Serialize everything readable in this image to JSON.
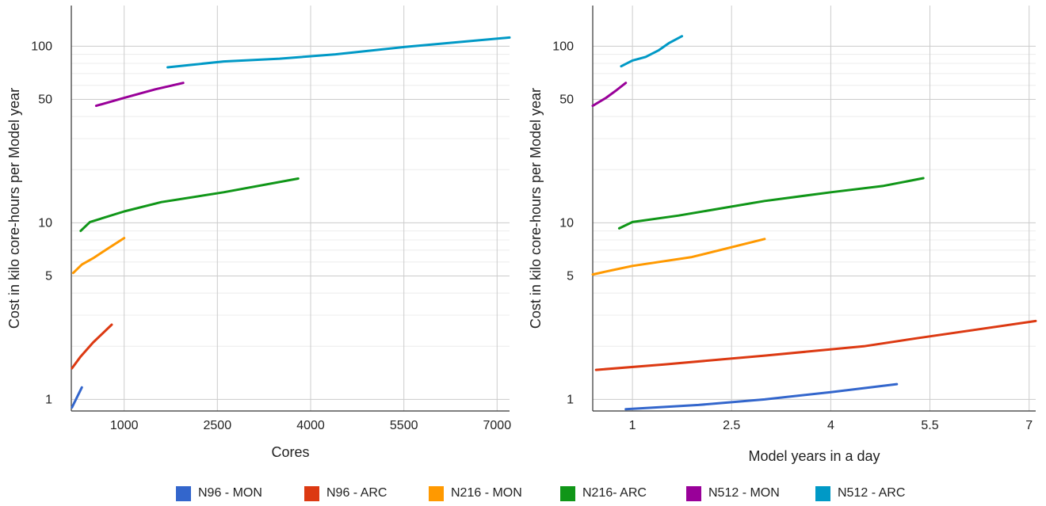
{
  "chart_data": [
    {
      "type": "line",
      "title": "",
      "xlabel": "Cores",
      "ylabel": "Cost in kilo core-hours  per Model year",
      "yscale": "log",
      "xlim": [
        150,
        7200
      ],
      "ylim": [
        0.86,
        170
      ],
      "xticks": [
        1000,
        2500,
        4000,
        5500,
        7000
      ],
      "xtick_labels": [
        "1000",
        "2500",
        "4000",
        "5500",
        "7000"
      ],
      "yticks": [
        1,
        5,
        10,
        50,
        100
      ],
      "ytick_labels": [
        "1",
        "5",
        "10",
        "50",
        "100"
      ],
      "grid": true,
      "series": [
        {
          "name": "N96 - MON",
          "color": "#3366cc",
          "points": [
            [
              160,
              0.9
            ],
            [
              320,
              1.17
            ]
          ]
        },
        {
          "name": "N96 - ARC",
          "color": "#dc3912",
          "points": [
            [
              160,
              1.5
            ],
            [
              300,
              1.75
            ],
            [
              500,
              2.1
            ],
            [
              800,
              2.65
            ]
          ]
        },
        {
          "name": "N216 - MON",
          "color": "#ff9900",
          "points": [
            [
              180,
              5.2
            ],
            [
              320,
              5.8
            ],
            [
              500,
              6.3
            ],
            [
              750,
              7.2
            ],
            [
              1000,
              8.2
            ]
          ]
        },
        {
          "name": "N216- ARC",
          "color": "#109618",
          "points": [
            [
              300,
              9.0
            ],
            [
              450,
              10.1
            ],
            [
              1000,
              11.6
            ],
            [
              1600,
              13.1
            ],
            [
              2600,
              14.9
            ],
            [
              3800,
              17.8
            ]
          ]
        },
        {
          "name": "N512 - MON",
          "color": "#990099",
          "points": [
            [
              550,
              46
            ],
            [
              1000,
              51
            ],
            [
              1500,
              57
            ],
            [
              1950,
              62
            ]
          ]
        },
        {
          "name": "N512 - ARC",
          "color": "#0099c6",
          "points": [
            [
              1700,
              76
            ],
            [
              2600,
              82
            ],
            [
              3500,
              85
            ],
            [
              4400,
              90
            ],
            [
              5500,
              99
            ],
            [
              7200,
              112
            ]
          ]
        }
      ]
    },
    {
      "type": "line",
      "title": "",
      "xlabel": "Model years in a day",
      "ylabel": "Cost in kilo core-hours  per Model year",
      "yscale": "log",
      "xlim": [
        0.4,
        7.1
      ],
      "ylim": [
        0.86,
        170
      ],
      "xticks": [
        1,
        2.5,
        4,
        5.5,
        7
      ],
      "xtick_labels": [
        "1",
        "2.5",
        "4",
        "5.5",
        "7"
      ],
      "yticks": [
        1,
        5,
        10,
        50,
        100
      ],
      "ytick_labels": [
        "1",
        "5",
        "10",
        "50",
        "100"
      ],
      "grid": true,
      "series": [
        {
          "name": "N96 - MON",
          "color": "#3366cc",
          "points": [
            [
              0.9,
              0.88
            ],
            [
              2.0,
              0.93
            ],
            [
              3.0,
              1.0
            ],
            [
              4.0,
              1.1
            ],
            [
              5.0,
              1.22
            ]
          ]
        },
        {
          "name": "N96 - ARC",
          "color": "#dc3912",
          "points": [
            [
              0.45,
              1.47
            ],
            [
              1.5,
              1.58
            ],
            [
              3.0,
              1.77
            ],
            [
              4.5,
              2.0
            ],
            [
              5.3,
              2.22
            ],
            [
              7.1,
              2.78
            ]
          ]
        },
        {
          "name": "N216 - MON",
          "color": "#ff9900",
          "points": [
            [
              0.4,
              5.1
            ],
            [
              0.7,
              5.4
            ],
            [
              1.0,
              5.7
            ],
            [
              1.9,
              6.4
            ],
            [
              3.0,
              8.1
            ]
          ]
        },
        {
          "name": "N216- ARC",
          "color": "#109618",
          "points": [
            [
              0.8,
              9.3
            ],
            [
              1.0,
              10.1
            ],
            [
              1.7,
              11.0
            ],
            [
              3.0,
              13.3
            ],
            [
              4.0,
              14.9
            ],
            [
              4.8,
              16.2
            ],
            [
              5.4,
              17.9
            ]
          ]
        },
        {
          "name": "N512 - MON",
          "color": "#990099",
          "points": [
            [
              0.4,
              46
            ],
            [
              0.6,
              51
            ],
            [
              0.75,
              56
            ],
            [
              0.9,
              62
            ]
          ]
        },
        {
          "name": "N512 - ARC",
          "color": "#0099c6",
          "points": [
            [
              0.83,
              77
            ],
            [
              1.0,
              83
            ],
            [
              1.2,
              87
            ],
            [
              1.4,
              95
            ],
            [
              1.55,
              104
            ],
            [
              1.75,
              114
            ]
          ]
        }
      ]
    }
  ],
  "legend": {
    "items": [
      {
        "label": "N96 - MON",
        "color": "#3366cc"
      },
      {
        "label": "N96 - ARC",
        "color": "#dc3912"
      },
      {
        "label": "N216 - MON",
        "color": "#ff9900"
      },
      {
        "label": "N216- ARC",
        "color": "#109618"
      },
      {
        "label": "N512 - MON",
        "color": "#990099"
      },
      {
        "label": "N512 - ARC",
        "color": "#0099c6"
      }
    ]
  }
}
